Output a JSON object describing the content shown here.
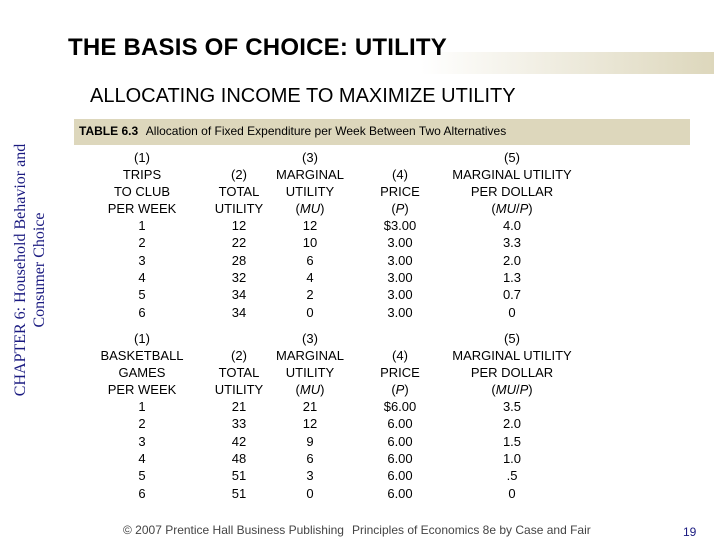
{
  "sidebar": {
    "line1": "CHAPTER 6: Household Behavior and",
    "line2": "Consumer Choice"
  },
  "header": {
    "title": "THE BASIS OF CHOICE: UTILITY",
    "subtitle": "ALLOCATING INCOME TO MAXIMIZE UTILITY"
  },
  "table": {
    "label": "TABLE 6.3",
    "caption": "Allocation of Fixed Expenditure per Week Between Two Alternatives",
    "club": {
      "headers": [
        [
          "(1)",
          "TRIPS",
          "TO CLUB",
          "PER WEEK"
        ],
        [
          "(2)",
          "TOTAL",
          "UTILITY"
        ],
        [
          "(3)",
          "MARGINAL",
          "UTILITY",
          "(MU)"
        ],
        [
          "(4)",
          "PRICE",
          "(P)"
        ],
        [
          "(5)",
          "MARGINAL UTILITY",
          "PER DOLLAR",
          "(MU/P)"
        ]
      ],
      "rows": [
        [
          "1",
          "12",
          "12",
          "$3.00",
          "4.0"
        ],
        [
          "2",
          "22",
          "10",
          "3.00",
          "3.3"
        ],
        [
          "3",
          "28",
          "6",
          "3.00",
          "2.0"
        ],
        [
          "4",
          "32",
          "4",
          "3.00",
          "1.3"
        ],
        [
          "5",
          "34",
          "2",
          "3.00",
          "0.7"
        ],
        [
          "6",
          "34",
          "0",
          "3.00",
          "0"
        ]
      ]
    },
    "basketball": {
      "headers": [
        [
          "(1)",
          "BASKETBALL",
          "GAMES",
          "PER WEEK"
        ],
        [
          "(2)",
          "TOTAL",
          "UTILITY"
        ],
        [
          "(3)",
          "MARGINAL",
          "UTILITY",
          "(MU)"
        ],
        [
          "(4)",
          "PRICE",
          "(P)"
        ],
        [
          "(5)",
          "MARGINAL UTILITY",
          "PER DOLLAR",
          "(MU/P)"
        ]
      ],
      "rows": [
        [
          "1",
          "21",
          "21",
          "$6.00",
          "3.5"
        ],
        [
          "2",
          "33",
          "12",
          "6.00",
          "2.0"
        ],
        [
          "3",
          "42",
          "9",
          "6.00",
          "1.5"
        ],
        [
          "4",
          "48",
          "6",
          "6.00",
          "1.0"
        ],
        [
          "5",
          "51",
          "3",
          "6.00",
          ".5"
        ],
        [
          "6",
          "51",
          "0",
          "6.00",
          "0"
        ]
      ]
    }
  },
  "footer": {
    "copyright": "© 2007 Prentice Hall Business Publishing",
    "book": "Principles of Economics 8e by Case and Fair",
    "page_number": "19"
  }
}
